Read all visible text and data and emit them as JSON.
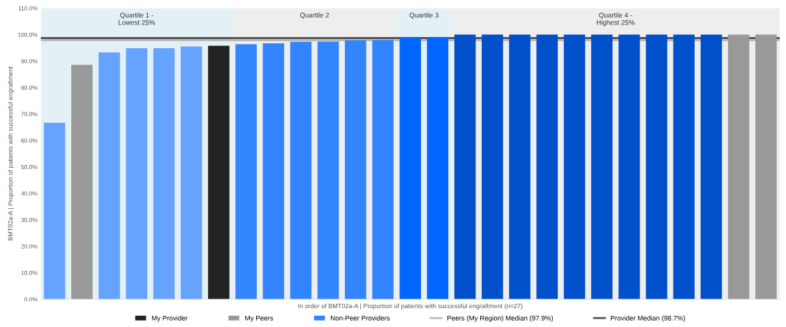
{
  "chart_data": {
    "type": "bar",
    "xlabel": "In order of BMT02a-A | Proportion of patients with successful engraftment (n=27)",
    "ylabel": "BMT02a-A | Proportion of patients with successful engraftment",
    "categories": [
      null,
      null,
      null,
      null,
      null,
      null,
      null,
      null,
      null,
      null,
      null,
      null,
      null,
      null,
      null,
      null,
      null,
      null,
      null,
      null,
      null,
      null,
      null,
      null,
      null,
      null,
      null
    ],
    "series": [
      {
        "name": "My Provider",
        "color": "#222222",
        "values": [
          null,
          null,
          null,
          null,
          null,
          null,
          95.8,
          null,
          null,
          null,
          null,
          null,
          null,
          null,
          null,
          null,
          null,
          null,
          null,
          null,
          null,
          null,
          null,
          null,
          null,
          null,
          null
        ]
      },
      {
        "name": "My Peers",
        "color": "#999999",
        "values": [
          null,
          88.6,
          null,
          null,
          null,
          null,
          null,
          null,
          null,
          null,
          null,
          null,
          null,
          null,
          null,
          null,
          null,
          null,
          null,
          null,
          null,
          null,
          null,
          null,
          null,
          100,
          100
        ]
      },
      {
        "name": "Non-Peer Providers",
        "color": "#3385ff",
        "colors": [
          "#66a3ff",
          "#66a3ff",
          "#66a3ff",
          "#66a3ff",
          "#66a3ff",
          "#66a3ff",
          "#66a3ff",
          "#3385ff",
          "#3385ff",
          "#3385ff",
          "#3385ff",
          "#3385ff",
          "#3385ff",
          "#0066ff",
          "#0066ff",
          "#0050cc",
          "#0050cc",
          "#0050cc",
          "#0050cc",
          "#0050cc",
          "#0050cc",
          "#0050cc",
          "#0050cc",
          "#0050cc",
          "#0050cc",
          "#0050cc",
          "#0050cc"
        ],
        "values": [
          66.7,
          null,
          93.3,
          94.9,
          94.9,
          95.5,
          null,
          96.4,
          96.7,
          97.3,
          97.4,
          97.9,
          98.0,
          98.8,
          98.9,
          100,
          100,
          100,
          100,
          100,
          100,
          100,
          100,
          100,
          100,
          null,
          null
        ]
      }
    ],
    "ylim": [
      0,
      110
    ],
    "yticks": [
      {
        "value": 0,
        "label": "0.0%"
      },
      {
        "value": 10,
        "label": "10.0%"
      },
      {
        "value": 20,
        "label": "20.0%"
      },
      {
        "value": 30,
        "label": "30.0%"
      },
      {
        "value": 40,
        "label": "40.0%"
      },
      {
        "value": 50,
        "label": "50.0%"
      },
      {
        "value": 60,
        "label": "60.0%"
      },
      {
        "value": 70,
        "label": "70.0%"
      },
      {
        "value": 80,
        "label": "80.0%"
      },
      {
        "value": 90,
        "label": "90.0%"
      },
      {
        "value": 100,
        "label": "100.0%"
      },
      {
        "value": 110,
        "label": "110.0%"
      }
    ],
    "annotations": [
      "Quartile 1 -\nLowest 25%",
      "Quartile 2",
      "Quartile 3",
      "Quartile 4 -\nHighest 25%"
    ],
    "ref_lines": [
      {
        "axis": "y",
        "value": 97.9,
        "label": "Peers (My Region) Median (97.9%)",
        "color": "#bbbbbb"
      },
      {
        "axis": "y",
        "value": 98.7,
        "label": "Provider Median (98.7%)",
        "color": "#555555"
      }
    ],
    "legend": "bottom",
    "grid": false
  }
}
